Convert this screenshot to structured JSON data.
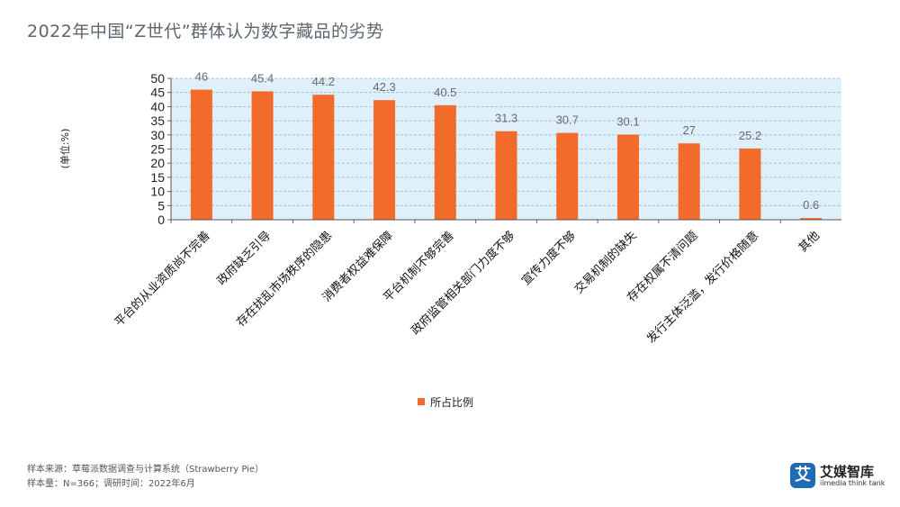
{
  "header": {
    "title": "2022年中国“Z世代”群体认为数字藏品的劣势"
  },
  "chart_data": {
    "type": "bar",
    "title": "2022年中国“Z世代”群体认为数字藏品的劣势",
    "ylabel": "(单位:%)",
    "xlabel": "",
    "ylim": [
      0,
      50
    ],
    "yticks": [
      0,
      5,
      10,
      15,
      20,
      25,
      30,
      35,
      40,
      45,
      50
    ],
    "grid": true,
    "legend_position": "bottom",
    "categories": [
      "平台的从业资质尚不完善",
      "政府缺乏引导",
      "存在扰乱市场秩序的隐患",
      "消费者权益难保障",
      "平台机制不够完善",
      "政府监管相关部门力度不够",
      "宣传力度不够",
      "交易机制的缺失",
      "存在权属不清问题",
      "发行主体泛滥，发行价格随意",
      "其他"
    ],
    "series": [
      {
        "name": "所占比例",
        "color": "#f26b2a",
        "values": [
          46,
          45.4,
          44.2,
          42.3,
          40.5,
          31.3,
          30.7,
          30.1,
          27,
          25.2,
          0.6
        ],
        "labels": [
          "46",
          "45.4",
          "44.2",
          "42.3",
          "40.5",
          "31.3",
          "30.7",
          "30.1",
          "27",
          "25.2",
          "0.6"
        ]
      }
    ],
    "colors": {
      "plot_background": "#dff0fa",
      "grid": "#8fb8d6",
      "label": "#6a6a6a"
    }
  },
  "footer": {
    "source_line": "样本来源：草莓派数据调查与计算系统（Strawberry Pie）",
    "sample_line": "样本量：N=366；调研时间：2022年6月"
  },
  "logo": {
    "mark": "艾",
    "name": "艾媒智库",
    "sub": "iimedia think tank"
  }
}
